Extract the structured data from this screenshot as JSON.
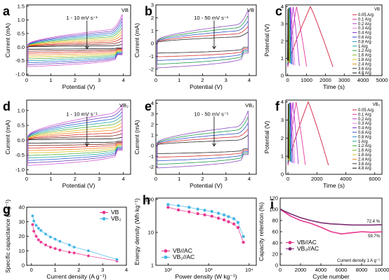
{
  "chart_data": [
    {
      "id": "a",
      "type": "line",
      "panel_label": "a",
      "xlabel": "Potential (V)",
      "ylabel": "Current (mA)",
      "xlim": [
        0,
        4.3
      ],
      "ylim": [
        -1.05,
        1.55
      ],
      "xticks": [
        0,
        1,
        2,
        3,
        4
      ],
      "yticks": [
        -1.0,
        -0.5,
        0.0,
        0.5,
        1.0,
        1.5
      ],
      "tick_labels_x": [
        "0",
        "1",
        "2",
        "3",
        "4"
      ],
      "tick_labels_y": [
        "-1.0",
        "-0.5",
        "0.0",
        "0.5",
        "1.0",
        "1.5"
      ],
      "corner_text": "VB",
      "annotation": "1 - 10 mV s⁻¹",
      "cv": {
        "x0": 0.05,
        "x1": 3.95,
        "n": 10,
        "upper_min": 0.05,
        "upper_max": 0.68,
        "lower_min": -0.08,
        "lower_max": -0.72,
        "tail_min": 0.1,
        "tail_max": 1.2
      }
    },
    {
      "id": "b",
      "type": "line",
      "panel_label": "b",
      "xlabel": "Potential (V)",
      "ylabel": "Current (mA)",
      "xlim": [
        0,
        4.3
      ],
      "ylim": [
        -2.5,
        3.0
      ],
      "xticks": [
        0,
        1,
        2,
        3,
        4
      ],
      "yticks": [
        -2,
        -1,
        0,
        1,
        2,
        3
      ],
      "tick_labels_x": [
        "0",
        "1",
        "2",
        "3",
        "4"
      ],
      "tick_labels_y": [
        "-2",
        "-1",
        "0",
        "1",
        "2",
        "3"
      ],
      "corner_text": "VB",
      "annotation": "10 - 50 mV s⁻¹",
      "cv": {
        "x0": 0.05,
        "x1": 3.95,
        "n": 5,
        "upper_min": 0.55,
        "upper_max": 1.55,
        "lower_min": -0.75,
        "lower_max": -1.9,
        "tail_min": 0.9,
        "tail_max": 2.6
      }
    },
    {
      "id": "c",
      "type": "line",
      "panel_label": "c",
      "xlabel": "Time (s)",
      "ylabel": "Potential (V)",
      "xlim": [
        -100,
        5000
      ],
      "ylim": [
        0,
        4.1
      ],
      "xticks": [
        0,
        1000,
        2000,
        3000,
        4000,
        5000
      ],
      "yticks": [
        0,
        1,
        2,
        3,
        4
      ],
      "tick_labels_x": [
        "0",
        "1000",
        "2000",
        "3000",
        "4000",
        "5000"
      ],
      "tick_labels_y": [
        "0",
        "1",
        "2",
        "3",
        "4"
      ],
      "legend_title": "VB",
      "legend": [
        "0.05 A/g",
        "0.1 A/g",
        "0.2 A/g",
        "0.3 A/g",
        "0.4 A/g",
        "0.6 A/g",
        "0.8 A/g",
        "1 A/g",
        "1.2 A/g",
        "1.6 A/g",
        "1.8 A/g",
        "2.4 A/g",
        "3.6 A/g",
        "4.8 A/g"
      ],
      "gcd_end_times": [
        2400,
        1000,
        620,
        380,
        290,
        215,
        170,
        140,
        115,
        95,
        80,
        62,
        45,
        32
      ]
    },
    {
      "id": "d",
      "type": "line",
      "panel_label": "d",
      "xlabel": "Potential (V)",
      "ylabel": "Current (mA)",
      "xlim": [
        0,
        4.3
      ],
      "ylim": [
        -1.15,
        1.35
      ],
      "xticks": [
        0,
        1,
        2,
        3,
        4
      ],
      "yticks": [
        -1.0,
        -0.5,
        0.0,
        0.5,
        1.0
      ],
      "tick_labels_x": [
        "0",
        "1",
        "2",
        "3",
        "4"
      ],
      "tick_labels_y": [
        "-1.0",
        "-0.5",
        "0.0",
        "0.5",
        "1.0"
      ],
      "corner_text": "VB₂",
      "annotation": "1 - 10 mV s⁻¹",
      "cv": {
        "x0": 0.05,
        "x1": 3.95,
        "n": 10,
        "upper_min": 0.05,
        "upper_max": 0.95,
        "lower_min": -0.1,
        "lower_max": -0.85,
        "tail_min": 0.1,
        "tail_max": 1.2
      }
    },
    {
      "id": "e",
      "type": "line",
      "panel_label": "e",
      "xlabel": "Potential (V)",
      "ylabel": "Current (mA)",
      "xlim": [
        0,
        4.3
      ],
      "ylim": [
        -2.7,
        4.3
      ],
      "xticks": [
        0,
        1,
        2,
        3,
        4
      ],
      "yticks": [
        -2,
        -1,
        0,
        1,
        2,
        3,
        4
      ],
      "tick_labels_x": [
        "0",
        "1",
        "2",
        "3",
        "4"
      ],
      "tick_labels_y": [
        "-2",
        "-1",
        "0",
        "1",
        "2",
        "3",
        "4"
      ],
      "corner_text": "VB₂",
      "annotation": "10 - 50 mV s⁻¹",
      "cv": {
        "x0": 0.05,
        "x1": 3.95,
        "n": 5,
        "upper_min": 0.55,
        "upper_max": 1.9,
        "lower_min": -0.75,
        "lower_max": -2.1,
        "tail_min": 1.0,
        "tail_max": 3.3
      }
    },
    {
      "id": "f",
      "type": "line",
      "panel_label": "f",
      "xlabel": "Time (s)",
      "ylabel": "Potential (V)",
      "xlim": [
        -150,
        6500
      ],
      "ylim": [
        0,
        4.1
      ],
      "xticks": [
        0,
        2000,
        4000,
        6000
      ],
      "yticks": [
        0,
        1,
        2,
        3,
        4
      ],
      "tick_labels_x": [
        "0",
        "2000",
        "4000",
        "6000"
      ],
      "tick_labels_y": [
        "0",
        "1",
        "2",
        "3",
        "4"
      ],
      "legend_title": "VB₂",
      "legend": [
        "0.05 A/g",
        "0.1 A/g",
        "0.2 A/g",
        "0.3 A/g",
        "0.4 A/g",
        "0.6 A/g",
        "0.8 A/g",
        "1 A/g",
        "1.2 A/g",
        "1.6 A/g",
        "1.8 A/g",
        "2.4 A/g",
        "3.6 A/g",
        "4.8 A/g"
      ],
      "gcd_end_times": [
        2800,
        1200,
        720,
        470,
        350,
        250,
        195,
        160,
        130,
        105,
        90,
        70,
        50,
        36
      ]
    },
    {
      "id": "g",
      "type": "scatter",
      "panel_label": "g",
      "xlabel": "Current density (A g⁻¹)",
      "ylabel": "Specific capacitance (F g⁻¹)",
      "xlim": [
        -0.2,
        4.0
      ],
      "ylim": [
        0,
        40
      ],
      "xticks": [
        0,
        1,
        2,
        3,
        4
      ],
      "yticks": [
        0,
        10,
        20,
        30,
        40
      ],
      "tick_labels_x": [
        "0",
        "1",
        "2",
        "3",
        "4"
      ],
      "tick_labels_y": [
        "0",
        "10",
        "20",
        "30",
        "40"
      ],
      "legend": [
        "VB",
        "VB₂"
      ],
      "series": [
        {
          "name": "VB",
          "color": "#e8368f",
          "x": [
            0.05,
            0.1,
            0.2,
            0.3,
            0.4,
            0.6,
            0.8,
            1.0,
            1.2,
            1.6,
            1.8,
            2.4,
            3.6
          ],
          "y": [
            28,
            23.5,
            20,
            17.5,
            16,
            14,
            12.5,
            11.5,
            10.5,
            9,
            8.5,
            6.5,
            3
          ]
        },
        {
          "name": "VB₂",
          "color": "#40b4e5",
          "x": [
            0.05,
            0.1,
            0.2,
            0.3,
            0.4,
            0.6,
            0.8,
            1.0,
            1.2,
            1.6,
            1.8,
            2.4,
            3.6
          ],
          "y": [
            34,
            30.5,
            27.5,
            25.5,
            24,
            21.5,
            19.5,
            18,
            16.5,
            14,
            12.5,
            10,
            4
          ]
        }
      ]
    },
    {
      "id": "h",
      "type": "scatter",
      "panel_label": "h",
      "xlabel": "Power density (W kg⁻¹)",
      "ylabel": "Energy density (Wh kg⁻¹)",
      "xscale": "log",
      "yscale": "log",
      "xlim": [
        50,
        15000
      ],
      "ylim": [
        1,
        110
      ],
      "xtick_values": [
        100,
        1000,
        10000
      ],
      "ytick_values": [
        1,
        10,
        100
      ],
      "tick_labels_x": [
        "10²",
        "10³",
        "10⁴"
      ],
      "tick_labels_y": [
        "1",
        "10",
        "100"
      ],
      "legend": [
        "VB//AC",
        "VB₂//AC"
      ],
      "series": [
        {
          "name": "VB//AC",
          "color": "#e8368f",
          "x": [
            100,
            180,
            330,
            540,
            800,
            1200,
            1750,
            2400,
            3100,
            4200,
            5300,
            7200
          ],
          "y": [
            58,
            48,
            42,
            37,
            34,
            31,
            27,
            24,
            21,
            18,
            14,
            5
          ]
        },
        {
          "name": "VB₂//AC",
          "color": "#40b4e5",
          "x": [
            100,
            180,
            330,
            540,
            800,
            1200,
            1750,
            2400,
            3100,
            4200,
            5300,
            7200
          ],
          "y": [
            70,
            65,
            58,
            51,
            47,
            43,
            38,
            34,
            30,
            26,
            20,
            7.5
          ]
        }
      ]
    },
    {
      "id": "i",
      "type": "line",
      "panel_label": "i",
      "xlabel": "Cycle number",
      "ylabel": "Capacity retention (%)",
      "xlim": [
        0,
        10000
      ],
      "ylim": [
        0,
        120
      ],
      "xticks": [
        0,
        2000,
        4000,
        6000,
        8000,
        10000
      ],
      "yticks": [
        0,
        20,
        40,
        60,
        80,
        100,
        120
      ],
      "tick_labels_x": [
        "0",
        "2000",
        "4000",
        "6000",
        "8000",
        "10000"
      ],
      "tick_labels_y": [
        "0",
        "20",
        "40",
        "60",
        "80",
        "100",
        "120"
      ],
      "legend": [
        "VB//AC",
        "VB₂//AC"
      ],
      "annotations": [
        "72.4 %",
        "59.7%"
      ],
      "caption": "Current density 1 A g⁻¹",
      "series": [
        {
          "name": "VB//AC",
          "color": "#e8368f",
          "x": [
            0,
            1000,
            2000,
            3000,
            4000,
            5000,
            6000,
            7000,
            8000,
            9000,
            10000
          ],
          "y": [
            100,
            88,
            80,
            75,
            68,
            60,
            56,
            58,
            60,
            59,
            59.7
          ]
        },
        {
          "name": "VB₂//AC",
          "color": "#7b2c72",
          "x": [
            0,
            1000,
            2000,
            3000,
            4000,
            5000,
            6000,
            7000,
            8000,
            9000,
            10000
          ],
          "y": [
            100,
            92,
            85,
            80,
            76,
            74,
            73,
            72,
            72,
            72,
            72.4
          ]
        }
      ]
    }
  ]
}
